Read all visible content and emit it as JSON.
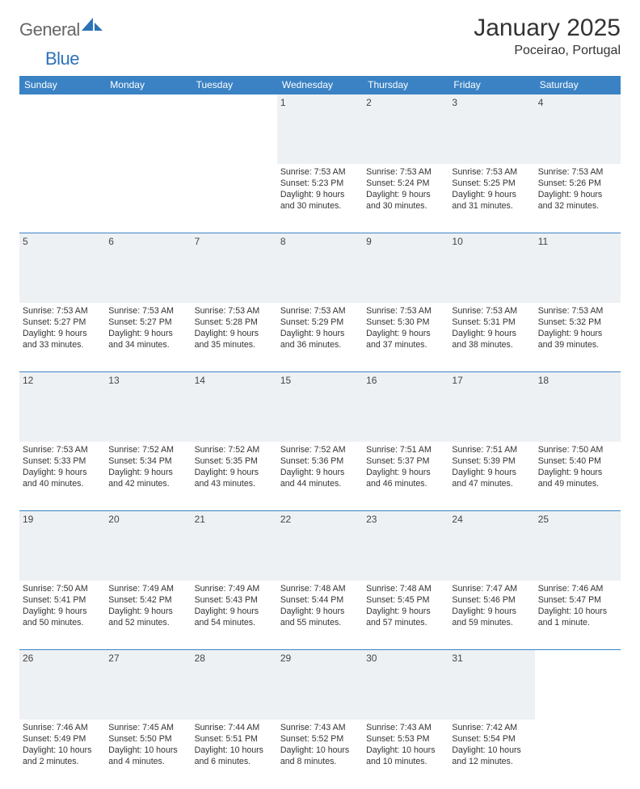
{
  "brand": {
    "general": "General",
    "blue": "Blue"
  },
  "header": {
    "month_title": "January 2025",
    "location": "Poceirao, Portugal"
  },
  "colors": {
    "header_bg": "#3a82c4",
    "header_text": "#ffffff",
    "daynum_bg": "#eef1f4",
    "rule": "#3a82c4",
    "body_bg": "#ffffff",
    "text": "#333333",
    "logo_gray": "#666666",
    "logo_blue": "#2d72b8"
  },
  "typography": {
    "title_fontsize": 30,
    "location_fontsize": 16,
    "header_fontsize": 12,
    "daynum_fontsize": 12,
    "cell_fontsize": 10.6
  },
  "days": [
    "Sunday",
    "Monday",
    "Tuesday",
    "Wednesday",
    "Thursday",
    "Friday",
    "Saturday"
  ],
  "weeks": [
    {
      "nums": [
        "",
        "",
        "",
        "1",
        "2",
        "3",
        "4"
      ],
      "cells": [
        [],
        [],
        [],
        [
          "Sunrise: 7:53 AM",
          "Sunset: 5:23 PM",
          "Daylight: 9 hours and 30 minutes."
        ],
        [
          "Sunrise: 7:53 AM",
          "Sunset: 5:24 PM",
          "Daylight: 9 hours and 30 minutes."
        ],
        [
          "Sunrise: 7:53 AM",
          "Sunset: 5:25 PM",
          "Daylight: 9 hours and 31 minutes."
        ],
        [
          "Sunrise: 7:53 AM",
          "Sunset: 5:26 PM",
          "Daylight: 9 hours and 32 minutes."
        ]
      ]
    },
    {
      "nums": [
        "5",
        "6",
        "7",
        "8",
        "9",
        "10",
        "11"
      ],
      "cells": [
        [
          "Sunrise: 7:53 AM",
          "Sunset: 5:27 PM",
          "Daylight: 9 hours and 33 minutes."
        ],
        [
          "Sunrise: 7:53 AM",
          "Sunset: 5:27 PM",
          "Daylight: 9 hours and 34 minutes."
        ],
        [
          "Sunrise: 7:53 AM",
          "Sunset: 5:28 PM",
          "Daylight: 9 hours and 35 minutes."
        ],
        [
          "Sunrise: 7:53 AM",
          "Sunset: 5:29 PM",
          "Daylight: 9 hours and 36 minutes."
        ],
        [
          "Sunrise: 7:53 AM",
          "Sunset: 5:30 PM",
          "Daylight: 9 hours and 37 minutes."
        ],
        [
          "Sunrise: 7:53 AM",
          "Sunset: 5:31 PM",
          "Daylight: 9 hours and 38 minutes."
        ],
        [
          "Sunrise: 7:53 AM",
          "Sunset: 5:32 PM",
          "Daylight: 9 hours and 39 minutes."
        ]
      ]
    },
    {
      "nums": [
        "12",
        "13",
        "14",
        "15",
        "16",
        "17",
        "18"
      ],
      "cells": [
        [
          "Sunrise: 7:53 AM",
          "Sunset: 5:33 PM",
          "Daylight: 9 hours and 40 minutes."
        ],
        [
          "Sunrise: 7:52 AM",
          "Sunset: 5:34 PM",
          "Daylight: 9 hours and 42 minutes."
        ],
        [
          "Sunrise: 7:52 AM",
          "Sunset: 5:35 PM",
          "Daylight: 9 hours and 43 minutes."
        ],
        [
          "Sunrise: 7:52 AM",
          "Sunset: 5:36 PM",
          "Daylight: 9 hours and 44 minutes."
        ],
        [
          "Sunrise: 7:51 AM",
          "Sunset: 5:37 PM",
          "Daylight: 9 hours and 46 minutes."
        ],
        [
          "Sunrise: 7:51 AM",
          "Sunset: 5:39 PM",
          "Daylight: 9 hours and 47 minutes."
        ],
        [
          "Sunrise: 7:50 AM",
          "Sunset: 5:40 PM",
          "Daylight: 9 hours and 49 minutes."
        ]
      ]
    },
    {
      "nums": [
        "19",
        "20",
        "21",
        "22",
        "23",
        "24",
        "25"
      ],
      "cells": [
        [
          "Sunrise: 7:50 AM",
          "Sunset: 5:41 PM",
          "Daylight: 9 hours and 50 minutes."
        ],
        [
          "Sunrise: 7:49 AM",
          "Sunset: 5:42 PM",
          "Daylight: 9 hours and 52 minutes."
        ],
        [
          "Sunrise: 7:49 AM",
          "Sunset: 5:43 PM",
          "Daylight: 9 hours and 54 minutes."
        ],
        [
          "Sunrise: 7:48 AM",
          "Sunset: 5:44 PM",
          "Daylight: 9 hours and 55 minutes."
        ],
        [
          "Sunrise: 7:48 AM",
          "Sunset: 5:45 PM",
          "Daylight: 9 hours and 57 minutes."
        ],
        [
          "Sunrise: 7:47 AM",
          "Sunset: 5:46 PM",
          "Daylight: 9 hours and 59 minutes."
        ],
        [
          "Sunrise: 7:46 AM",
          "Sunset: 5:47 PM",
          "Daylight: 10 hours and 1 minute."
        ]
      ]
    },
    {
      "nums": [
        "26",
        "27",
        "28",
        "29",
        "30",
        "31",
        ""
      ],
      "cells": [
        [
          "Sunrise: 7:46 AM",
          "Sunset: 5:49 PM",
          "Daylight: 10 hours and 2 minutes."
        ],
        [
          "Sunrise: 7:45 AM",
          "Sunset: 5:50 PM",
          "Daylight: 10 hours and 4 minutes."
        ],
        [
          "Sunrise: 7:44 AM",
          "Sunset: 5:51 PM",
          "Daylight: 10 hours and 6 minutes."
        ],
        [
          "Sunrise: 7:43 AM",
          "Sunset: 5:52 PM",
          "Daylight: 10 hours and 8 minutes."
        ],
        [
          "Sunrise: 7:43 AM",
          "Sunset: 5:53 PM",
          "Daylight: 10 hours and 10 minutes."
        ],
        [
          "Sunrise: 7:42 AM",
          "Sunset: 5:54 PM",
          "Daylight: 10 hours and 12 minutes."
        ],
        []
      ]
    }
  ]
}
